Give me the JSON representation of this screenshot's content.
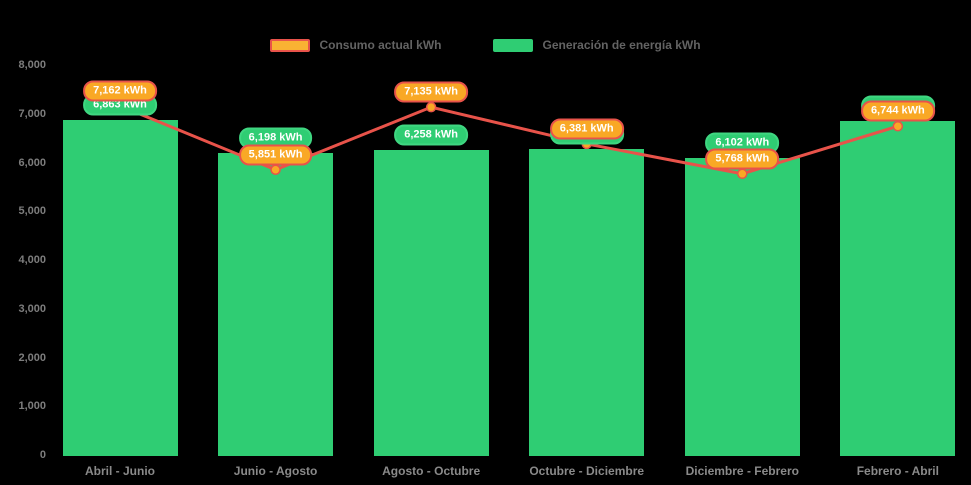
{
  "legend": [
    {
      "label": "Consumo actual kWh",
      "series_type": "line",
      "swatch_fill": "#f9b233",
      "swatch_border": "#e8534a"
    },
    {
      "label": "Generación de energía kWh",
      "series_type": "bar",
      "swatch_fill": "#2fcd73",
      "swatch_border": "#2fcd73"
    }
  ],
  "chart_data": {
    "type": "combo",
    "categories": [
      "Abril - Junio",
      "Junio - Agosto",
      "Agosto - Octubre",
      "Octubre - Diciembre",
      "Diciembre - Febrero",
      "Febrero - Abril"
    ],
    "series": [
      {
        "name": "Generación de energía kWh",
        "type": "bar",
        "color": "#2fcd73",
        "values": [
          6863,
          6198,
          6258,
          6280,
          6102,
          6848
        ],
        "labels": [
          "6,863 kWh",
          "6,198 kWh",
          "6,258 kWh",
          "6,280 kWh",
          "6,102 kWh",
          "6,848 kWh"
        ]
      },
      {
        "name": "Consumo actual kWh",
        "type": "line",
        "color": "#e8534a",
        "point_color": "#f9a825",
        "values": [
          7162,
          5851,
          7135,
          6381,
          5768,
          6744
        ],
        "labels": [
          "7,162 kWh",
          "5,851 kWh",
          "7,135 kWh",
          "6,381 kWh",
          "5,768 kWh",
          "6,744 kWh"
        ]
      }
    ],
    "ylim": [
      0,
      8000
    ],
    "yticks": {
      "values": [
        8000,
        7000,
        6000,
        5000,
        4000,
        3000,
        2000,
        1000,
        0
      ],
      "labels": [
        "8,000",
        "7,000",
        "6,000",
        "5,000",
        "4,000",
        "3,000",
        "2,000",
        "1,000",
        "0"
      ]
    },
    "legend_position": "top",
    "grid": false,
    "background": "#000000"
  }
}
